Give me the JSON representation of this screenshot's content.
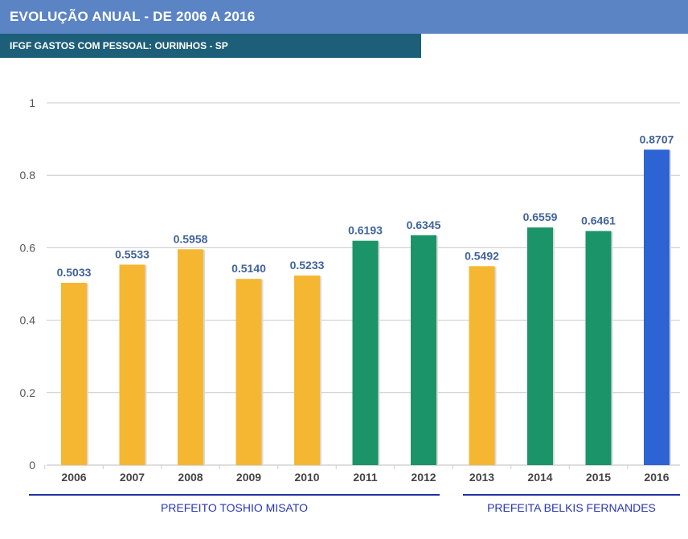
{
  "header": {
    "title": "EVOLUÇÃO ANUAL - DE 2006 A 2016",
    "subtitle": "IFGF GASTOS COM PESSOAL: OURINHOS - SP"
  },
  "colors": {
    "yellow": "#f5b731",
    "green": "#1b9469",
    "blue": "#2e63d3",
    "value_label": "#41639a",
    "grid": "#c8c8c8"
  },
  "chart_data": {
    "type": "bar",
    "title": "",
    "xlabel": "",
    "ylabel": "",
    "ylim": [
      0,
      1
    ],
    "yticks": [
      "0",
      "0.2",
      "0.4",
      "0.6",
      "0.8",
      "1"
    ],
    "ytick_values": [
      0,
      0.2,
      0.4,
      0.6,
      0.8,
      1
    ],
    "grid": true,
    "categories": [
      "2006",
      "2007",
      "2008",
      "2009",
      "2010",
      "2011",
      "2012",
      "2013",
      "2014",
      "2015",
      "2016"
    ],
    "values": [
      0.5033,
      0.5533,
      0.5958,
      0.514,
      0.5233,
      0.6193,
      0.6345,
      0.5492,
      0.6559,
      0.6461,
      0.8707
    ],
    "value_labels": [
      "0.5033",
      "0.5533",
      "0.5958",
      "0.5140",
      "0.5233",
      "0.6193",
      "0.6345",
      "0.5492",
      "0.6559",
      "0.6461",
      "0.8707"
    ],
    "bar_colors": [
      "yellow",
      "yellow",
      "yellow",
      "yellow",
      "yellow",
      "green",
      "green",
      "yellow",
      "green",
      "green",
      "blue"
    ]
  },
  "groups": [
    {
      "label": "PREFEITO TOSHIO MISATO",
      "from_index": 0,
      "to_index": 6
    },
    {
      "label": "PREFEITA BELKIS FERNANDES",
      "from_index": 7,
      "to_index": 10
    }
  ]
}
